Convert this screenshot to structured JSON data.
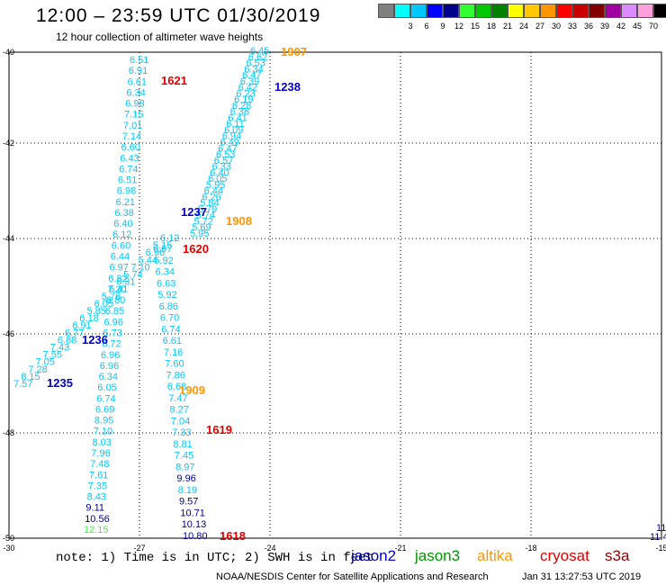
{
  "header": {
    "title": "12:00 – 23:59 UTC 01/30/2019",
    "subtitle": "12 hour collection of altimeter wave heights"
  },
  "legend": {
    "unit": "(ft)",
    "items": [
      {
        "label": "",
        "color": "#808080"
      },
      {
        "label": "3",
        "color": "#00ffff"
      },
      {
        "label": "6",
        "color": "#00c8ff"
      },
      {
        "label": "9",
        "color": "#0000ff"
      },
      {
        "label": "12",
        "color": "#00008c"
      },
      {
        "label": "15",
        "color": "#32ff32"
      },
      {
        "label": "18",
        "color": "#00c800"
      },
      {
        "label": "21",
        "color": "#008200"
      },
      {
        "label": "24",
        "color": "#ffff00"
      },
      {
        "label": "27",
        "color": "#ffc800"
      },
      {
        "label": "30",
        "color": "#ff9600"
      },
      {
        "label": "33",
        "color": "#ff0000"
      },
      {
        "label": "36",
        "color": "#c80000"
      },
      {
        "label": "39",
        "color": "#820000"
      },
      {
        "label": "42",
        "color": "#a000a0"
      },
      {
        "label": "45",
        "color": "#dc8cff"
      },
      {
        "label": "70",
        "color": "#ffa0dc"
      },
      {
        "label": "",
        "color": "#000000"
      }
    ]
  },
  "axes": {
    "lat_ticks": [
      "-40",
      "-42",
      "-44",
      "-46",
      "-48",
      "-50"
    ],
    "lon_ticks": [
      "-30",
      "-27",
      "-24",
      "-21",
      "-18",
      "-15"
    ]
  },
  "colors": {
    "ht_6": "#00c8ff",
    "ht_9": "#0000ff",
    "ht_12": "#00008c",
    "ht_15": "#32ff32",
    "jason2": "#0000c8",
    "jason3": "#009600",
    "altika": "#ff9600",
    "cryosat": "#e10000",
    "s3a": "#8c0000"
  },
  "pass_times": [
    {
      "text": "1907",
      "sat": "altika"
    },
    {
      "text": "1621",
      "sat": "cryosat"
    },
    {
      "text": "1238",
      "sat": "jason2"
    },
    {
      "text": "1237",
      "sat": "jason2"
    },
    {
      "text": "1908",
      "sat": "altika"
    },
    {
      "text": "1620",
      "sat": "cryosat"
    },
    {
      "text": "1236",
      "sat": "jason2"
    },
    {
      "text": "1235",
      "sat": "jason2"
    },
    {
      "text": "1909",
      "sat": "altika"
    },
    {
      "text": "1619",
      "sat": "cryosat"
    },
    {
      "text": "1618",
      "sat": "cryosat"
    }
  ],
  "tracks": {
    "cryosat_west": [
      "6.51",
      "6.91",
      "6.61",
      "6.34",
      "6.98",
      "7.15",
      "7.01",
      "7.14",
      "6.60",
      "6.43",
      "6.74",
      "6.51",
      "6.98",
      "6.21",
      "6.38",
      "6.40",
      "6.12",
      "6.60",
      "6.44",
      "6.97",
      "6.82",
      "7.20",
      "6.80",
      "6.85",
      "6.96",
      "6.73",
      "6.72",
      "6.96",
      "6.96",
      "6.34",
      "6.05",
      "6.74",
      "6.69",
      "8.95",
      "7.10",
      "8.03",
      "7.96",
      "7.48",
      "7.61",
      "7.35",
      "8.43",
      "9.11",
      "10.56",
      "12.15"
    ],
    "cryosat_east": [
      "6.97",
      "5.92",
      "6.34",
      "6.63",
      "5.92",
      "6.86",
      "6.70",
      "6.74",
      "6.61",
      "7.16",
      "7.60",
      "7.86",
      "6.68",
      "7.47",
      "8.27",
      "7.04",
      "7.33",
      "8.81",
      "7.45",
      "8.97",
      "9.96",
      "8.19",
      "9.57",
      "10.71",
      "10.13",
      "10.80"
    ],
    "jason2_high": [
      "6.45",
      "6.62",
      "6.53",
      "6.34",
      "6.47",
      "6.39",
      "6.42",
      "6.23",
      "6.19",
      "6.28",
      "6.38",
      "6.41",
      "6.11",
      "6.09",
      "6.94",
      "6.49",
      "6.47",
      "6.53",
      "6.57",
      "6.33",
      "6.40",
      "6.05",
      "5.95",
      "6.44",
      "6.26",
      "5.84",
      "5.79",
      "5.74",
      "5.72",
      "5.69",
      "5.95"
    ],
    "jason2_low": [
      "6.12",
      "5.15",
      "6.96",
      "5.44",
      "7.10",
      "5.74",
      "6.31",
      "6.41",
      "5.76",
      "6.05",
      "5.85",
      "6.18",
      "6.91",
      "6.77",
      "6.88",
      "7.43",
      "7.55",
      "7.05",
      "7.28",
      "8.15",
      "7.57"
    ],
    "right_edge": [
      "11",
      "11.4"
    ]
  },
  "footer": {
    "note": "note: 1) Time is in UTC; 2) SWH is in feet",
    "satellites": [
      {
        "label": "jason2",
        "color": "#0000c8"
      },
      {
        "label": "jason3",
        "color": "#009600"
      },
      {
        "label": "altika",
        "color": "#ff9600"
      },
      {
        "label": "cryosat",
        "color": "#e10000"
      },
      {
        "label": "s3a",
        "color": "#8c0000"
      }
    ],
    "credit": "NOAA/NESDIS Center for Satellite Applications and Research",
    "timestamp": "Jan 31 13:27:53 UTC 2019"
  }
}
